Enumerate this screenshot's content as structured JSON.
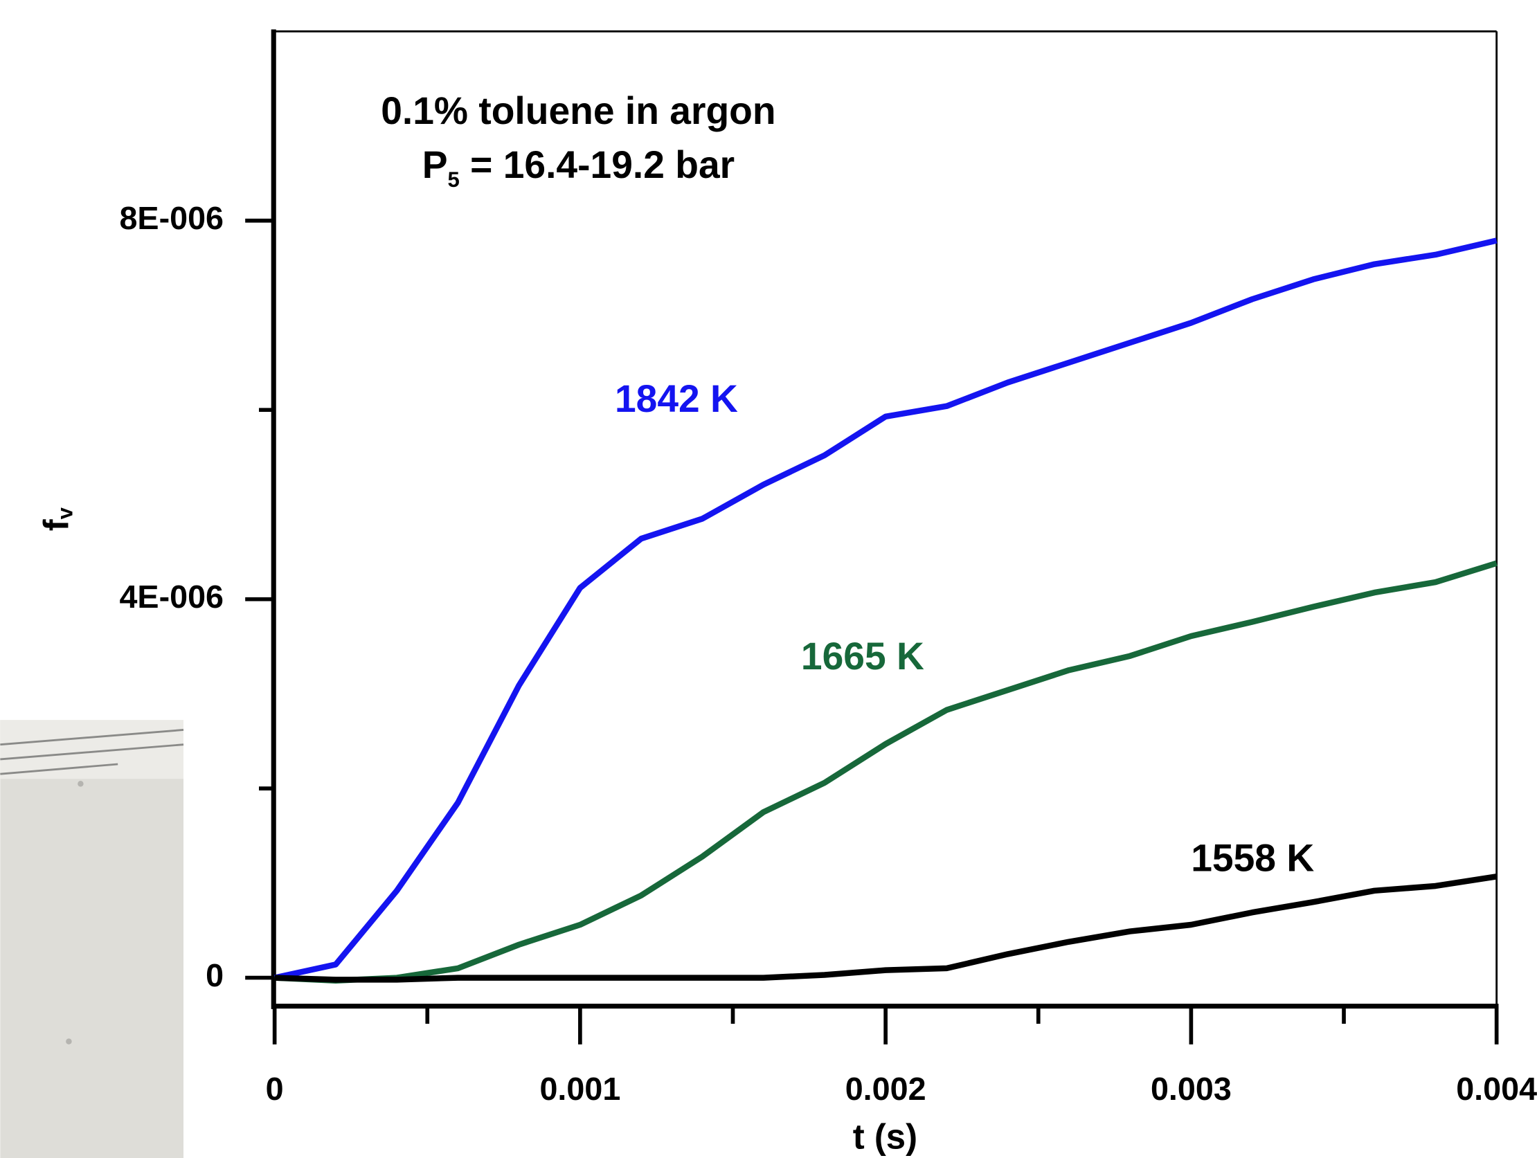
{
  "chart_data": {
    "type": "line",
    "annotation_lines": [
      [
        "0.1% toluene in argon"
      ],
      [
        "P",
        "5",
        " = 16.4-19.2 bar"
      ]
    ],
    "xlabel": "t (s)",
    "ylabel": [
      "f",
      "v"
    ],
    "x": [
      0,
      0.0002,
      0.0004,
      0.0006,
      0.0008,
      0.001,
      0.0012,
      0.0014,
      0.0016,
      0.0018,
      0.002,
      0.0022,
      0.0024,
      0.0026,
      0.0028,
      0.003,
      0.0032,
      0.0034,
      0.0036,
      0.0038,
      0.004
    ],
    "series": [
      {
        "name": "1842 K",
        "color": "#1414f0",
        "values": [
          0,
          1.4e-07,
          9.2e-07,
          1.85e-06,
          3.09e-06,
          4.12e-06,
          4.64e-06,
          4.85e-06,
          5.21e-06,
          5.52e-06,
          5.93e-06,
          6.04e-06,
          6.29e-06,
          6.5e-06,
          6.71e-06,
          6.92e-06,
          7.17e-06,
          7.38e-06,
          7.54e-06,
          7.64e-06,
          7.79e-06
        ]
      },
      {
        "name": "1665 K",
        "color": "#17683a",
        "values": [
          0,
          -3e-08,
          0,
          1e-07,
          3.5e-07,
          5.6e-07,
          8.7e-07,
          1.28e-06,
          1.75e-06,
          2.06e-06,
          2.47e-06,
          2.83e-06,
          3.04e-06,
          3.25e-06,
          3.4e-06,
          3.61e-06,
          3.76e-06,
          3.92e-06,
          4.07e-06,
          4.18e-06,
          4.38e-06
        ]
      },
      {
        "name": "1558 K",
        "color": "#000000",
        "values": [
          0,
          -2e-08,
          -2e-08,
          0,
          0,
          0,
          0,
          0,
          0,
          3e-08,
          8e-08,
          1e-07,
          2.5e-07,
          3.8e-07,
          4.9e-07,
          5.6e-07,
          6.9e-07,
          8e-07,
          9.2e-07,
          9.7e-07,
          1.07e-06
        ]
      }
    ],
    "xlim": [
      0,
      0.004
    ],
    "xticks": [
      0,
      0.001,
      0.002,
      0.003,
      0.004
    ],
    "xminorticks": [
      0.0005,
      0.0015,
      0.0025,
      0.0035
    ],
    "ylim": [
      -3e-07,
      1e-05
    ],
    "yticks": [
      0,
      {
        "value": 4e-06,
        "label": "4E-006"
      },
      {
        "value": 8e-06,
        "label": "8E-006"
      }
    ],
    "yminorticks": [
      2e-06,
      6e-06
    ]
  }
}
